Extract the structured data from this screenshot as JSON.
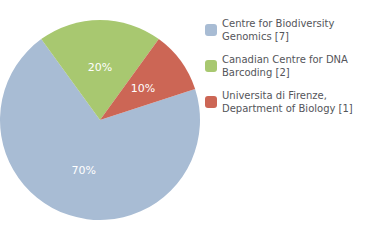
{
  "chart_data": {
    "type": "pie",
    "categories": [
      "Centre for Biodiversity\nGenomics [7]",
      "Canadian Centre for DNA\nBarcoding [2]",
      "Universita di Firenze,\nDepartment of Biology [1]"
    ],
    "values": [
      70,
      20,
      10
    ],
    "value_labels": [
      "70%",
      "20%",
      "10%"
    ],
    "colors": [
      "#a8bcd4",
      "#a8c870",
      "#cc6655"
    ],
    "data_labels": true,
    "legend": "upper right"
  }
}
